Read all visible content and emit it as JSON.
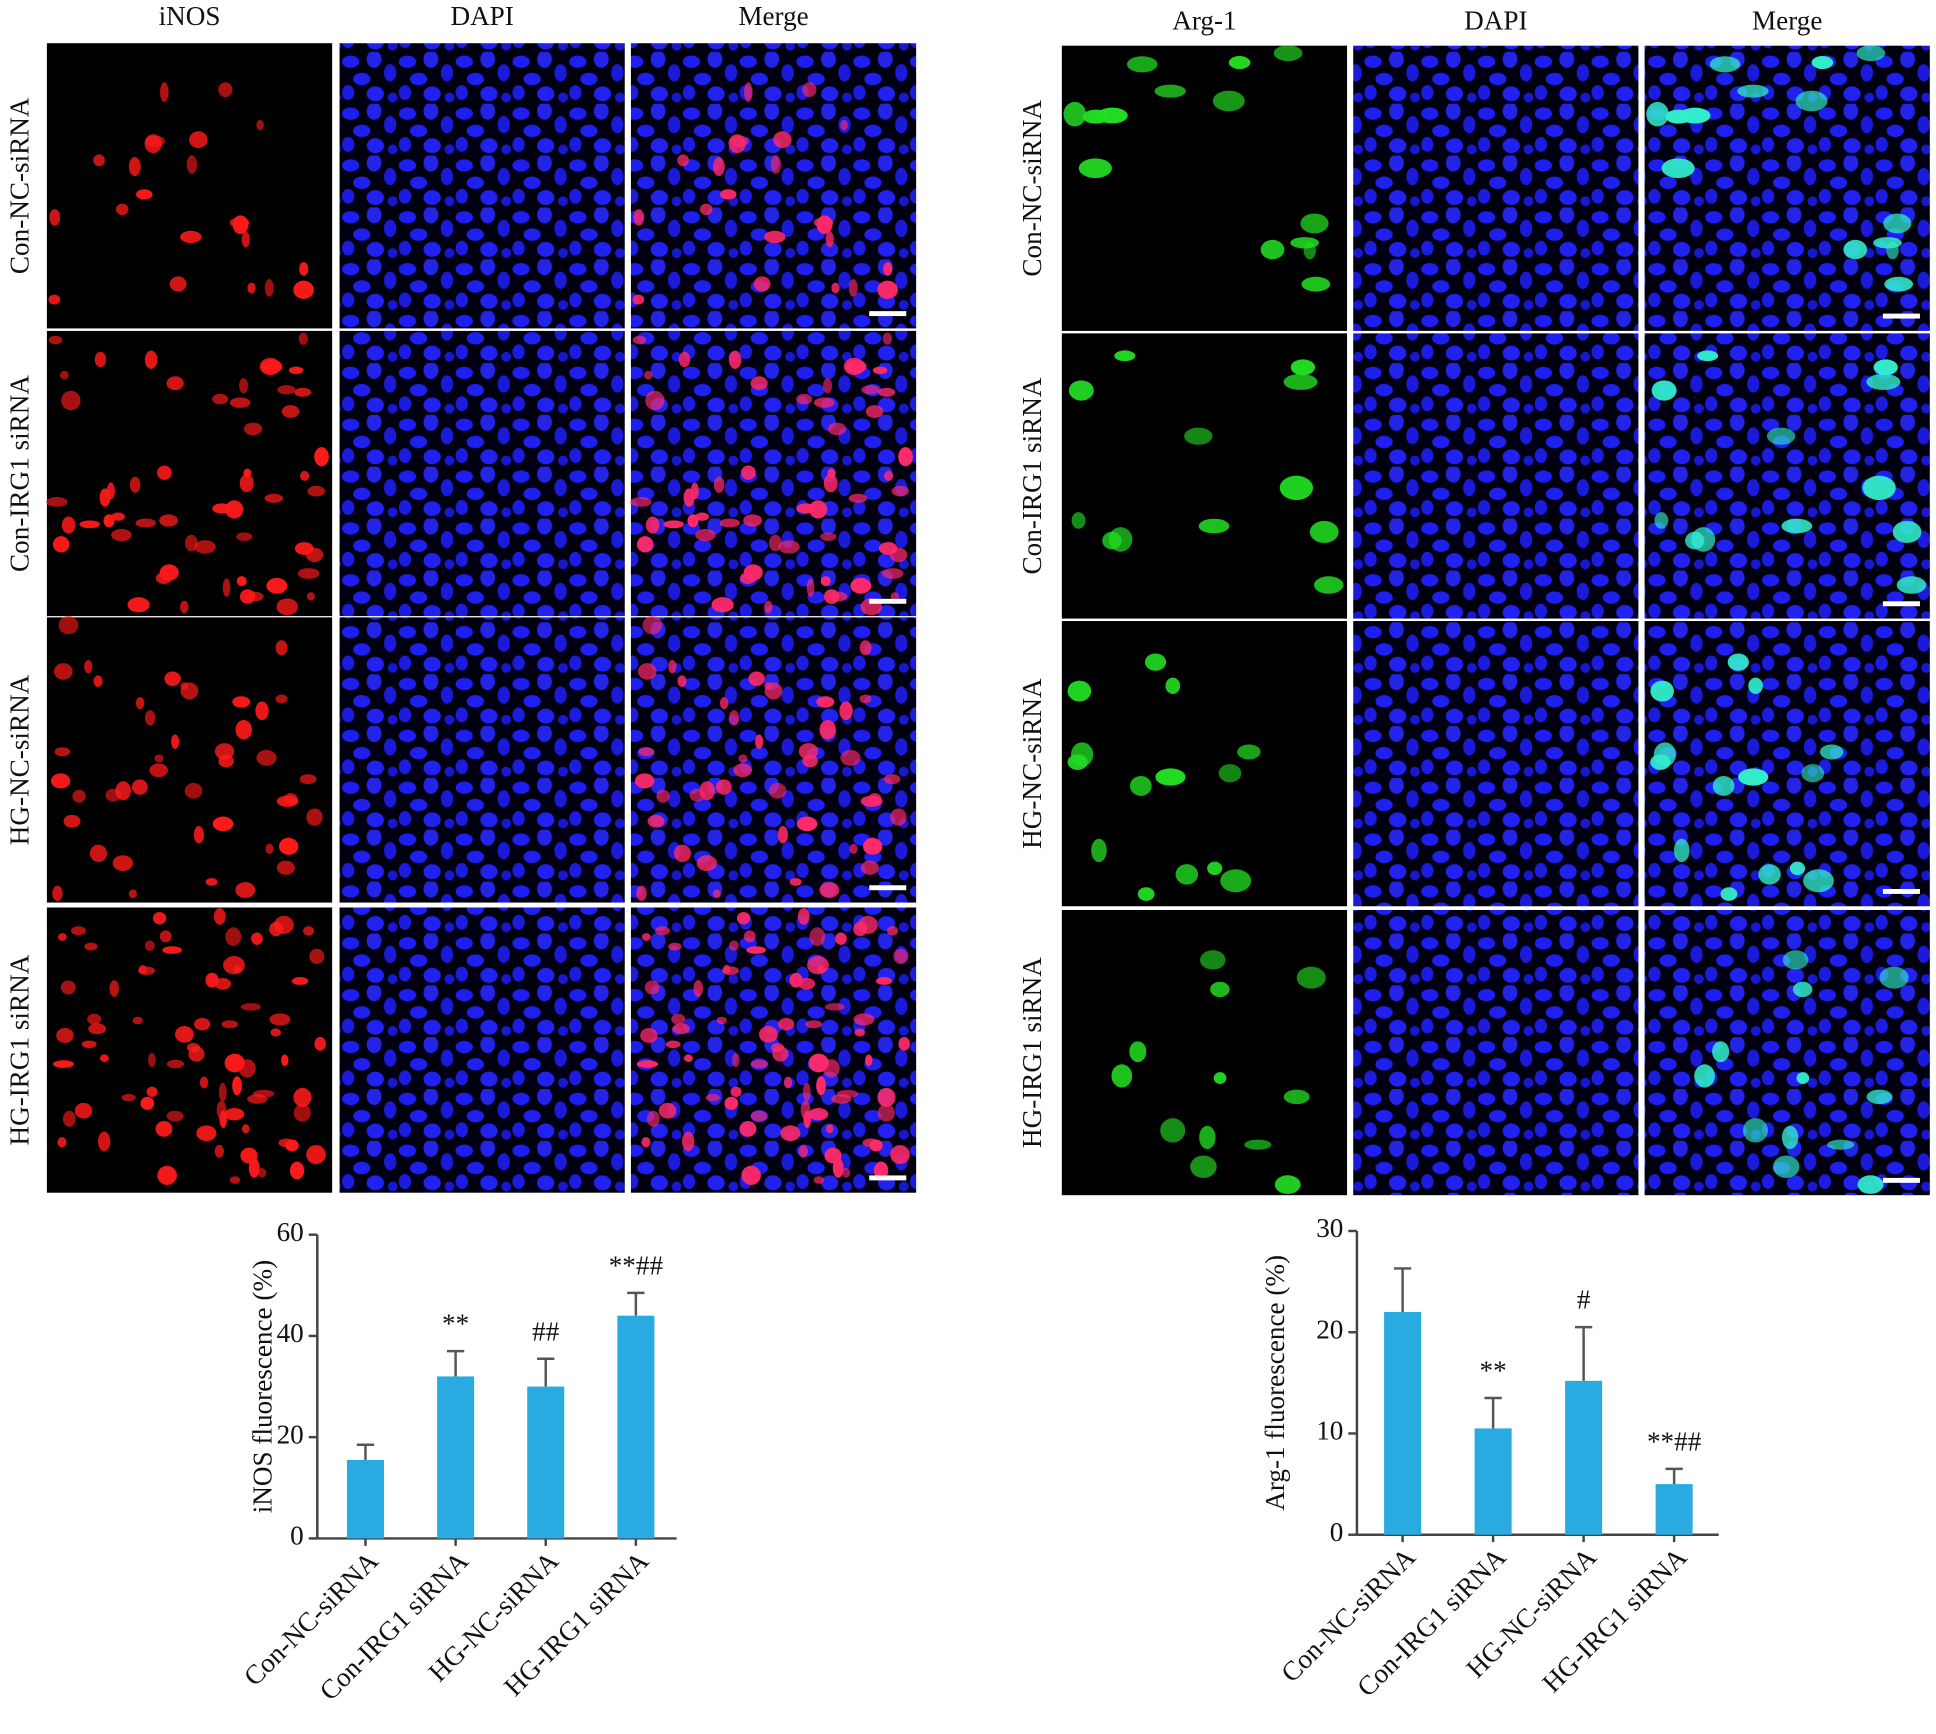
{
  "panels": [
    {
      "columns": [
        "iNOS",
        "DAPI",
        "Merge"
      ],
      "rows": [
        "Con-NC-siRNA",
        "Con-IRG1 siRNA",
        "HG-NC-siRNA",
        "HG-IRG1 siRNA"
      ]
    },
    {
      "columns": [
        "Arg-1",
        "DAPI",
        "Merge"
      ],
      "rows": [
        "Con-NC-siRNA",
        "Con-IRG1 siRNA",
        "HG-NC-siRNA",
        "HG-IRG1 siRNA"
      ]
    }
  ],
  "chart_data": [
    {
      "type": "bar",
      "y_label": "iNOS fluorescence (%)",
      "categories": [
        "Con-NC-siRNA",
        "Con-IRG1 siRNA",
        "HG-NC-siRNA",
        "HG-IRG1 siRNA"
      ],
      "values": [
        15.5,
        32,
        30,
        44
      ],
      "errors": [
        3,
        5,
        5.5,
        4.5
      ],
      "annotations": [
        null,
        "**",
        "##",
        "**##"
      ],
      "color": "#29abe2",
      "ylim": [
        0,
        60
      ],
      "yticks": [
        0,
        20,
        40,
        60
      ]
    },
    {
      "type": "bar",
      "y_label": "Arg-1 fluorescence (%)",
      "categories": [
        "Con-NC-siRNA",
        "Con-IRG1 siRNA",
        "HG-NC-siRNA",
        "HG-IRG1 siRNA"
      ],
      "values": [
        22,
        10.5,
        15.2,
        5
      ],
      "errors": [
        4.3,
        3,
        5.3,
        1.5
      ],
      "annotations": [
        null,
        "**",
        "#",
        "**##"
      ],
      "color": "#29abe2",
      "ylim": [
        0,
        30
      ],
      "yticks": [
        0,
        10,
        20,
        30
      ]
    }
  ]
}
